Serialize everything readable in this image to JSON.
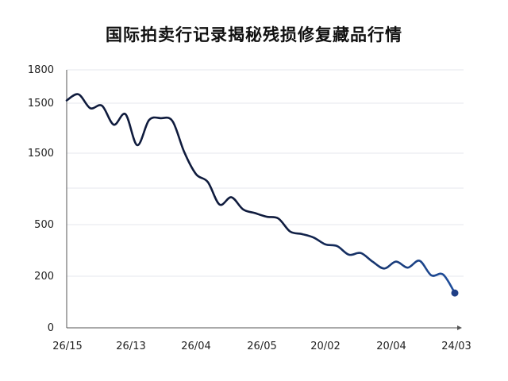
{
  "chart_data": {
    "type": "line",
    "title": "国际拍卖行记录揭秘残损修复藏品行情",
    "xlabel": "",
    "ylabel": "",
    "grid": true,
    "y_tick_labels": [
      "0",
      "200",
      "500",
      "1500",
      "1500",
      "1800"
    ],
    "x_tick_labels": [
      "26/15",
      "26/13",
      "26/04",
      "26/05",
      "20/02",
      "20/04",
      "24/03"
    ],
    "series": [
      {
        "color_start": "#0f1b3d",
        "color_end": "#1f4e9c",
        "end_marker_color": "#1f3f86",
        "values": [
          1525,
          1580,
          1450,
          1475,
          1285,
          1390,
          1080,
          1330,
          1350,
          1320,
          1010,
          880,
          835,
          665,
          725,
          625,
          595,
          565,
          550,
          460,
          445,
          425,
          385,
          375,
          325,
          335,
          285,
          245,
          285,
          250,
          290,
          205,
          210,
          135
        ]
      }
    ]
  }
}
